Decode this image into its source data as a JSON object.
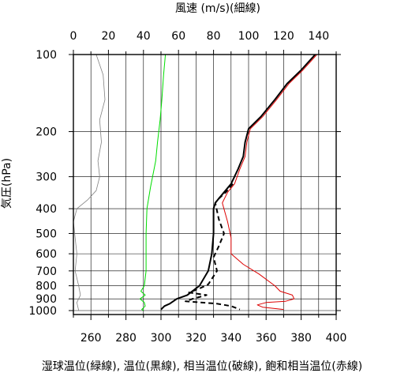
{
  "chart_data": {
    "type": "line",
    "top_axis": {
      "label": "風速 (m/s)(細線)",
      "range": [
        0,
        150
      ],
      "ticks": [
        0,
        20,
        40,
        60,
        80,
        100,
        120,
        140
      ]
    },
    "bottom_axis": {
      "label": "湿球温位(緑線), 温位(黒線), 相当温位(破線), 飽和相当温位(赤線)",
      "range": [
        250,
        400
      ],
      "ticks": [
        260,
        280,
        300,
        320,
        340,
        360,
        380,
        400
      ]
    },
    "y_axis": {
      "label": "気圧(hPa)",
      "scale": "log",
      "range": [
        100,
        1050
      ],
      "ticks": [
        100,
        200,
        300,
        400,
        500,
        600,
        700,
        800,
        900,
        1000
      ],
      "reversed": true
    },
    "grid": true,
    "series": [
      {
        "name": "風速",
        "axis": "top",
        "color": "#808080",
        "style": "thin",
        "points": [
          [
            13,
            100
          ],
          [
            17,
            120
          ],
          [
            18,
            150
          ],
          [
            15,
            180
          ],
          [
            16,
            220
          ],
          [
            14,
            260
          ],
          [
            15,
            300
          ],
          [
            13,
            340
          ],
          [
            8,
            370
          ],
          [
            2,
            400
          ],
          [
            0,
            450
          ],
          [
            1,
            520
          ],
          [
            2,
            600
          ],
          [
            1,
            700
          ],
          [
            3,
            800
          ],
          [
            4,
            870
          ],
          [
            2,
            930
          ],
          [
            3,
            1000
          ]
        ]
      },
      {
        "name": "湿球温位",
        "axis": "bottom",
        "color": "#00dd00",
        "style": "solid",
        "points": [
          [
            302.5,
            100
          ],
          [
            301.5,
            120
          ],
          [
            300.5,
            150
          ],
          [
            299.5,
            180
          ],
          [
            298,
            220
          ],
          [
            297,
            260
          ],
          [
            294,
            330
          ],
          [
            292,
            400
          ],
          [
            291.5,
            500
          ],
          [
            291.5,
            600
          ],
          [
            291.5,
            700
          ],
          [
            290.5,
            800
          ],
          [
            288.5,
            840
          ],
          [
            291,
            870
          ],
          [
            288,
            900
          ],
          [
            290.5,
            930
          ],
          [
            291,
            960
          ],
          [
            289,
            990
          ],
          [
            290,
            1000
          ]
        ]
      },
      {
        "name": "温位",
        "axis": "bottom",
        "color": "#000000",
        "style": "bold",
        "points": [
          [
            388,
            100
          ],
          [
            380,
            115
          ],
          [
            372,
            130
          ],
          [
            365,
            150
          ],
          [
            357,
            175
          ],
          [
            350,
            195
          ],
          [
            348,
            220
          ],
          [
            347,
            250
          ],
          [
            344,
            280
          ],
          [
            340,
            320
          ],
          [
            336,
            345
          ],
          [
            333,
            365
          ],
          [
            331,
            380
          ],
          [
            330,
            400
          ],
          [
            330,
            500
          ],
          [
            329,
            600
          ],
          [
            327,
            700
          ],
          [
            322,
            800
          ],
          [
            315,
            870
          ],
          [
            309,
            900
          ],
          [
            305,
            940
          ],
          [
            302,
            960
          ],
          [
            300,
            990
          ]
        ]
      },
      {
        "name": "相当温位",
        "axis": "bottom",
        "color": "#000000",
        "style": "dashed",
        "points": [
          [
            341,
            320
          ],
          [
            337,
            345
          ],
          [
            333,
            365
          ],
          [
            331,
            380
          ],
          [
            333,
            440
          ],
          [
            336,
            500
          ],
          [
            333,
            560
          ],
          [
            330,
            620
          ],
          [
            332,
            700
          ],
          [
            327,
            790
          ],
          [
            322,
            820
          ],
          [
            316,
            850
          ],
          [
            326,
            870
          ],
          [
            318,
            900
          ],
          [
            314,
            920
          ],
          [
            332,
            940
          ],
          [
            340,
            960
          ],
          [
            345,
            990
          ]
        ]
      },
      {
        "name": "飽和相当温位",
        "axis": "bottom",
        "color": "#dd0000",
        "style": "solid",
        "points": [
          [
            389,
            100
          ],
          [
            381,
            115
          ],
          [
            373,
            130
          ],
          [
            366,
            150
          ],
          [
            358,
            175
          ],
          [
            351,
            195
          ],
          [
            349,
            220
          ],
          [
            348,
            250
          ],
          [
            345,
            280
          ],
          [
            342,
            320
          ],
          [
            338,
            345
          ],
          [
            335,
            380
          ],
          [
            338,
            450
          ],
          [
            340,
            520
          ],
          [
            340,
            600
          ],
          [
            347,
            660
          ],
          [
            356,
            720
          ],
          [
            365,
            800
          ],
          [
            368,
            840
          ],
          [
            375,
            870
          ],
          [
            376,
            900
          ],
          [
            371,
            920
          ],
          [
            360,
            930
          ],
          [
            355,
            950
          ],
          [
            358,
            970
          ],
          [
            370,
            990
          ]
        ]
      }
    ]
  }
}
